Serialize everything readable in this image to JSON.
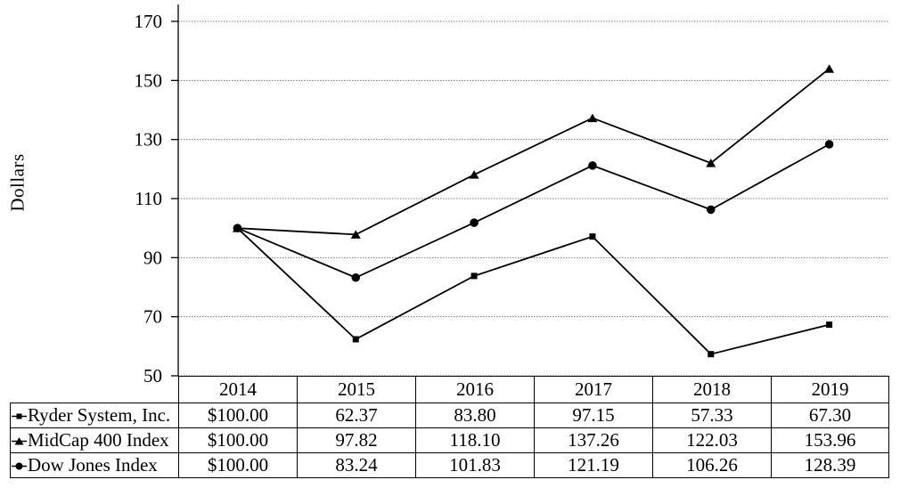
{
  "figure": {
    "background": "#ffffff",
    "line_color": "#000000",
    "grid_color": "#7a7a7a",
    "axis_color": "#000000"
  },
  "chart_data": {
    "type": "line",
    "title": "",
    "xlabel": "",
    "ylabel": "Dollars",
    "ylim": [
      50,
      170
    ],
    "yticks": [
      50,
      70,
      90,
      110,
      130,
      150,
      170
    ],
    "grid": true,
    "legend_position": "table-left-column",
    "categories": [
      "2014",
      "2015",
      "2016",
      "2017",
      "2018",
      "2019"
    ],
    "series": [
      {
        "name": "Ryder System, Inc.",
        "marker": "square",
        "values": [
          100.0,
          62.37,
          83.8,
          97.15,
          57.33,
          67.3
        ],
        "display_values": [
          "$100.00",
          "62.37",
          "83.80",
          "97.15",
          "57.33",
          "67.30"
        ]
      },
      {
        "name": "MidCap 400 Index",
        "marker": "triangle",
        "values": [
          100.0,
          97.82,
          118.1,
          137.26,
          122.03,
          153.96
        ],
        "display_values": [
          "$100.00",
          "97.82",
          "118.10",
          "137.26",
          "122.03",
          "153.96"
        ]
      },
      {
        "name": "Dow Jones Index",
        "marker": "circle",
        "values": [
          100.0,
          83.24,
          101.83,
          121.19,
          106.26,
          128.39
        ],
        "display_values": [
          "$100.00",
          "83.24",
          "101.83",
          "121.19",
          "106.26",
          "128.39"
        ]
      }
    ]
  }
}
